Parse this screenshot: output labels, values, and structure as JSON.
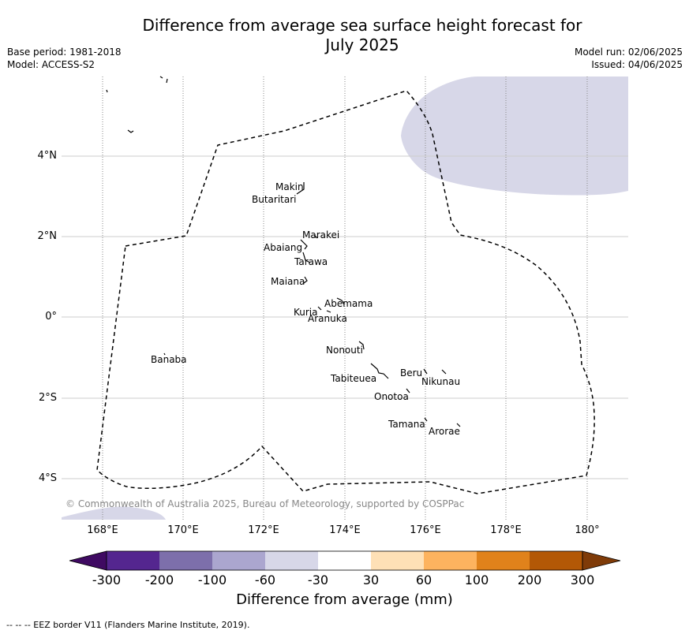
{
  "title_line1": "Difference from average sea surface height forecast for",
  "title_line2": "July 2025",
  "meta": {
    "base_period": "Base period: 1981-2018",
    "model": "Model: ACCESS-S2",
    "model_run": "Model run: 02/06/2025",
    "issued": "Issued: 04/06/2025"
  },
  "map": {
    "lat_labels": [
      "4°N",
      "2°N",
      "0°",
      "2°S",
      "4°S"
    ],
    "lon_labels": [
      "168°E",
      "170°E",
      "172°E",
      "174°E",
      "176°E",
      "178°E",
      "180°"
    ],
    "copyright": "© Commonwealth of Australia 2025, Bureau of Meteorology, supported by COSPPac",
    "islands": [
      "Makin",
      "Butaritari",
      "Marakei",
      "Abaiang",
      "Tarawa",
      "Maiana",
      "Abemama",
      "Kuria",
      "Aranuka",
      "Nonouti",
      "Banaba",
      "Beru",
      "Nikunau",
      "Tabiteuea",
      "Onotoa",
      "Tamana",
      "Arorae"
    ],
    "anomaly_fill_color": "#d7d7e8",
    "eez_line_color": "#000000"
  },
  "colorbar": {
    "ticks": [
      "-300",
      "-200",
      "-100",
      "-60",
      "-30",
      "30",
      "60",
      "100",
      "200",
      "300"
    ],
    "colors": [
      "#3f0a62",
      "#54268f",
      "#7d6fab",
      "#aba6cf",
      "#d7d7e8",
      "#ffffff",
      "#fee0b6",
      "#fdb35f",
      "#e0821b",
      "#b35806",
      "#7f3b08"
    ],
    "label": "Difference from average (mm)"
  },
  "footer": "--  --  -- EEZ border V11 (Flanders Marine Institute, 2019)."
}
